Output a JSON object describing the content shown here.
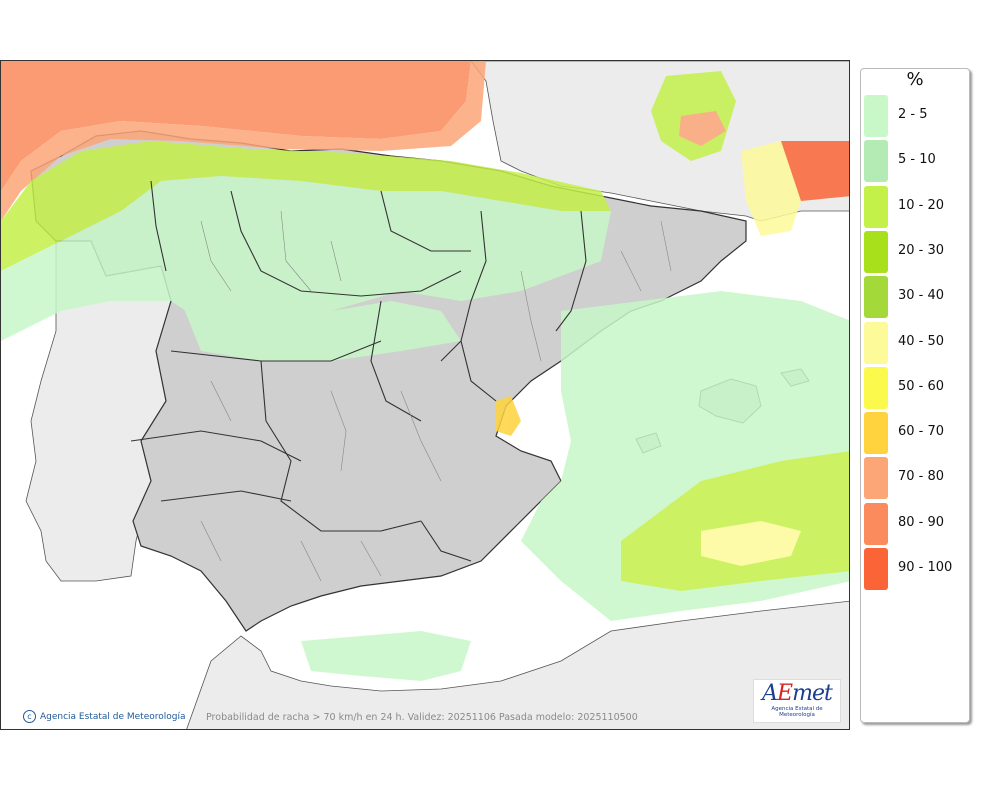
{
  "map": {
    "caption": "Probabilidad de racha > 70 km/h en 24 h. Validez: 20251106 Pasada modelo: 2025110500",
    "credit": "Agencia Estatal de Meteorología",
    "logo": {
      "word_a": "A",
      "word_e": "E",
      "word_met": "met",
      "sub": "Agencia Estatal de Meteorología"
    }
  },
  "legend": {
    "unit": "%",
    "classes": [
      {
        "label": "2 - 5",
        "color": "#c8f7c8"
      },
      {
        "label": "5 - 10",
        "color": "#b4ebb4"
      },
      {
        "label": "10 - 20",
        "color": "#c4f04a"
      },
      {
        "label": "20 - 30",
        "color": "#a9e01c"
      },
      {
        "label": "30 - 40",
        "color": "#a3d939"
      },
      {
        "label": "40 - 50",
        "color": "#fdfa9a"
      },
      {
        "label": "50 - 60",
        "color": "#fbf94c"
      },
      {
        "label": "60 - 70",
        "color": "#fed33d"
      },
      {
        "label": "70 - 80",
        "color": "#fca678"
      },
      {
        "label": "80 - 90",
        "color": "#fb8a5c"
      },
      {
        "label": "90 - 100",
        "color": "#fb6437"
      }
    ]
  },
  "colors": {
    "land": "#cfcfcf",
    "foreign_land": "#ececec",
    "sea": "#ffffff"
  }
}
